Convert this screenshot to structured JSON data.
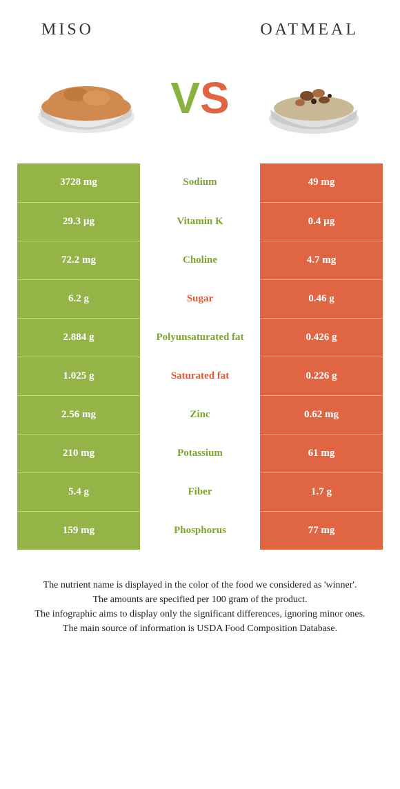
{
  "header": {
    "left_title": "MISO",
    "right_title": "OATMEAL",
    "vs_v": "V",
    "vs_s": "S"
  },
  "colors": {
    "green": "#94b447",
    "orange": "#e06543",
    "green_text": "#7fa236",
    "orange_text": "#d95a3a",
    "miso_fill": "#d08a4f",
    "miso_bowl": "#e8e8e8",
    "oat_fill": "#c9b896",
    "oat_bowl": "#e0e0e0",
    "oat_top1": "#7a4a2a",
    "oat_top2": "#a86b3f"
  },
  "rows": [
    {
      "left": "3728 mg",
      "label": "Sodium",
      "right": "49 mg",
      "winner": "left"
    },
    {
      "left": "29.3 µg",
      "label": "Vitamin K",
      "right": "0.4 µg",
      "winner": "left"
    },
    {
      "left": "72.2 mg",
      "label": "Choline",
      "right": "4.7 mg",
      "winner": "left"
    },
    {
      "left": "6.2 g",
      "label": "Sugar",
      "right": "0.46 g",
      "winner": "right"
    },
    {
      "left": "2.884 g",
      "label": "Polyunsaturated fat",
      "right": "0.426 g",
      "winner": "left"
    },
    {
      "left": "1.025 g",
      "label": "Saturated fat",
      "right": "0.226 g",
      "winner": "right"
    },
    {
      "left": "2.56 mg",
      "label": "Zinc",
      "right": "0.62 mg",
      "winner": "left"
    },
    {
      "left": "210 mg",
      "label": "Potassium",
      "right": "61 mg",
      "winner": "left"
    },
    {
      "left": "5.4 g",
      "label": "Fiber",
      "right": "1.7 g",
      "winner": "left"
    },
    {
      "left": "159 mg",
      "label": "Phosphorus",
      "right": "77 mg",
      "winner": "left"
    }
  ],
  "footer": {
    "line1": "The nutrient name is displayed in the color of the food we considered as 'winner'.",
    "line2": "The amounts are specified per 100 gram of the product.",
    "line3": "The infographic aims to display only the significant differences, ignoring minor ones.",
    "line4": "The main source of information is USDA Food Composition Database."
  }
}
